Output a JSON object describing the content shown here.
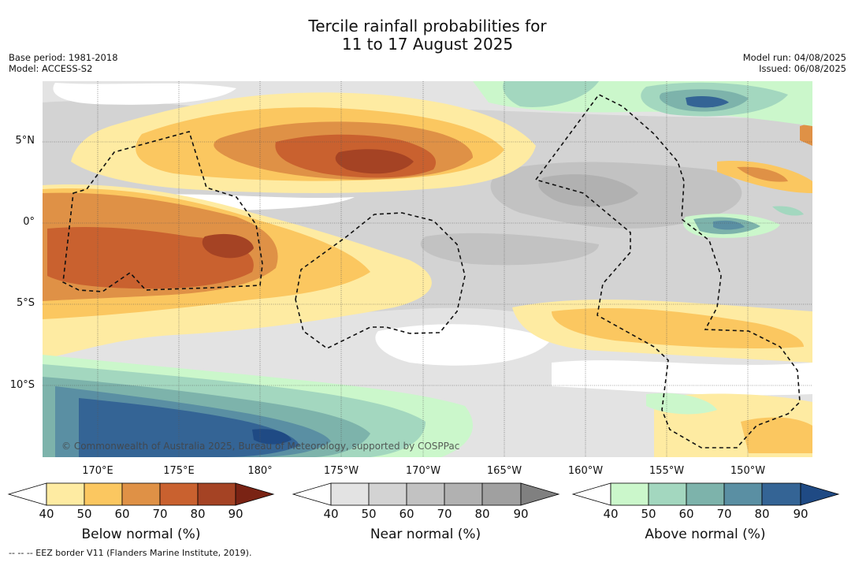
{
  "title_line1": "Tercile rainfall probabilities for",
  "title_line2": "11 to 17 August 2025",
  "meta_left": {
    "base_period": "Base period: 1981-2018",
    "model": "Model: ACCESS-S2"
  },
  "meta_right": {
    "model_run": "Model run: 04/08/2025",
    "issued": "Issued: 06/08/2025"
  },
  "lat_labels": [
    "5°N",
    "0°",
    "5°S",
    "10°S"
  ],
  "lon_labels": [
    "170°E",
    "175°E",
    "180°",
    "175°W",
    "170°W",
    "165°W",
    "160°W",
    "155°W",
    "150°W"
  ],
  "copyright": "© Commonwealth of Australia 2025, Bureau of Meteorology, supported by COSPPac",
  "colorbars": [
    {
      "title": "Below normal (%)",
      "ticks": [
        "40",
        "50",
        "60",
        "70",
        "80",
        "90"
      ],
      "colors": [
        "#ffffff",
        "#feeba2",
        "#fbc760",
        "#df9146",
        "#c9612f",
        "#a54324",
        "#7a2314"
      ]
    },
    {
      "title": "Near normal (%)",
      "ticks": [
        "40",
        "50",
        "60",
        "70",
        "80",
        "90"
      ],
      "colors": [
        "#ffffff",
        "#e3e3e3",
        "#d3d3d3",
        "#c2c2c2",
        "#b1b1b1",
        "#a0a0a0",
        "#808080"
      ]
    },
    {
      "title": "Above normal (%)",
      "ticks": [
        "40",
        "50",
        "60",
        "70",
        "80",
        "90"
      ],
      "colors": [
        "#ffffff",
        "#cbf7cb",
        "#a3d7bf",
        "#7db3ab",
        "#5a8fa3",
        "#346495",
        "#1f4a84"
      ]
    }
  ],
  "footnote": "--  --  -- EEZ border V11 (Flanders Marine Institute, 2019)."
}
